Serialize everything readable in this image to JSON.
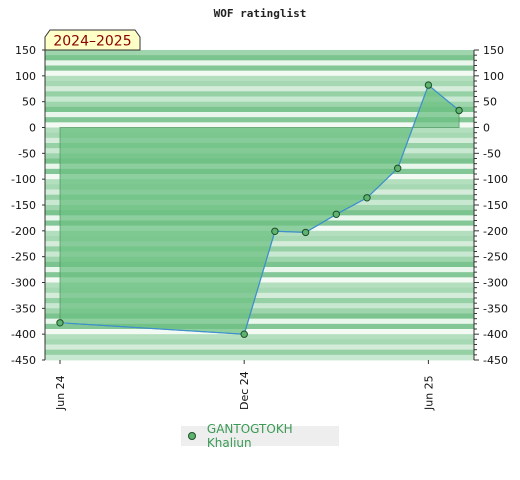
{
  "chart_data": {
    "type": "area",
    "title": "WOF ratinglist",
    "badge": "2024–2025",
    "ylim": [
      -450,
      150
    ],
    "ytick_step": 50,
    "yticks": [
      150,
      100,
      50,
      0,
      -50,
      -100,
      -150,
      -200,
      -250,
      -300,
      -350,
      -400,
      -450
    ],
    "xticks": [
      "Jun 24",
      "Dec 24",
      "Jun 25"
    ],
    "series": [
      {
        "name": "GANTOGTOKH Khaliun",
        "x": [
          "2024-06",
          "2024-12",
          "2025-01",
          "2025-02",
          "2025-03",
          "2025-04",
          "2025-05",
          "2025-06",
          "2025-07"
        ],
        "values": [
          -378,
          -400,
          -201,
          -203,
          -168,
          -136,
          -79,
          82,
          33
        ]
      }
    ],
    "colors": {
      "fill": "#6cc083",
      "line": "#3d8fd0",
      "marker": "#5db36f",
      "marker_edge": "#1d4f26",
      "band_light": "#eef8f0",
      "band_dark": "#7cc48f"
    }
  }
}
